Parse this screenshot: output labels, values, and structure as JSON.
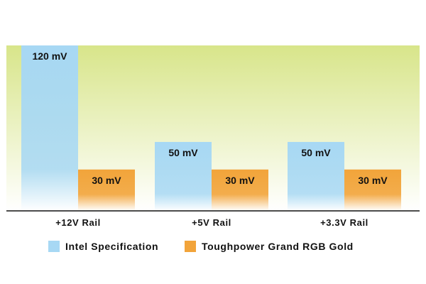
{
  "chart_data": {
    "type": "bar",
    "title": "",
    "xlabel": "",
    "ylabel": "",
    "categories": [
      "+12V Rail",
      "+5V Rail",
      "+3.3V Rail"
    ],
    "series": [
      {
        "name": "Intel Specification",
        "values": [
          120,
          50,
          50
        ],
        "labels": [
          "120 mV",
          "50 mV",
          "50 mV"
        ],
        "color": "#a7d8f4"
      },
      {
        "name": "Toughpower Grand RGB Gold",
        "values": [
          30,
          30,
          30
        ],
        "labels": [
          "30 mV",
          "30 mV",
          "30 mV"
        ],
        "color": "#f2a43a"
      }
    ],
    "ylim": [
      0,
      120
    ],
    "unit": "mV",
    "grid": false,
    "legend_position": "bottom",
    "background_gradient": [
      "#d8e58a",
      "#ffffff"
    ]
  }
}
